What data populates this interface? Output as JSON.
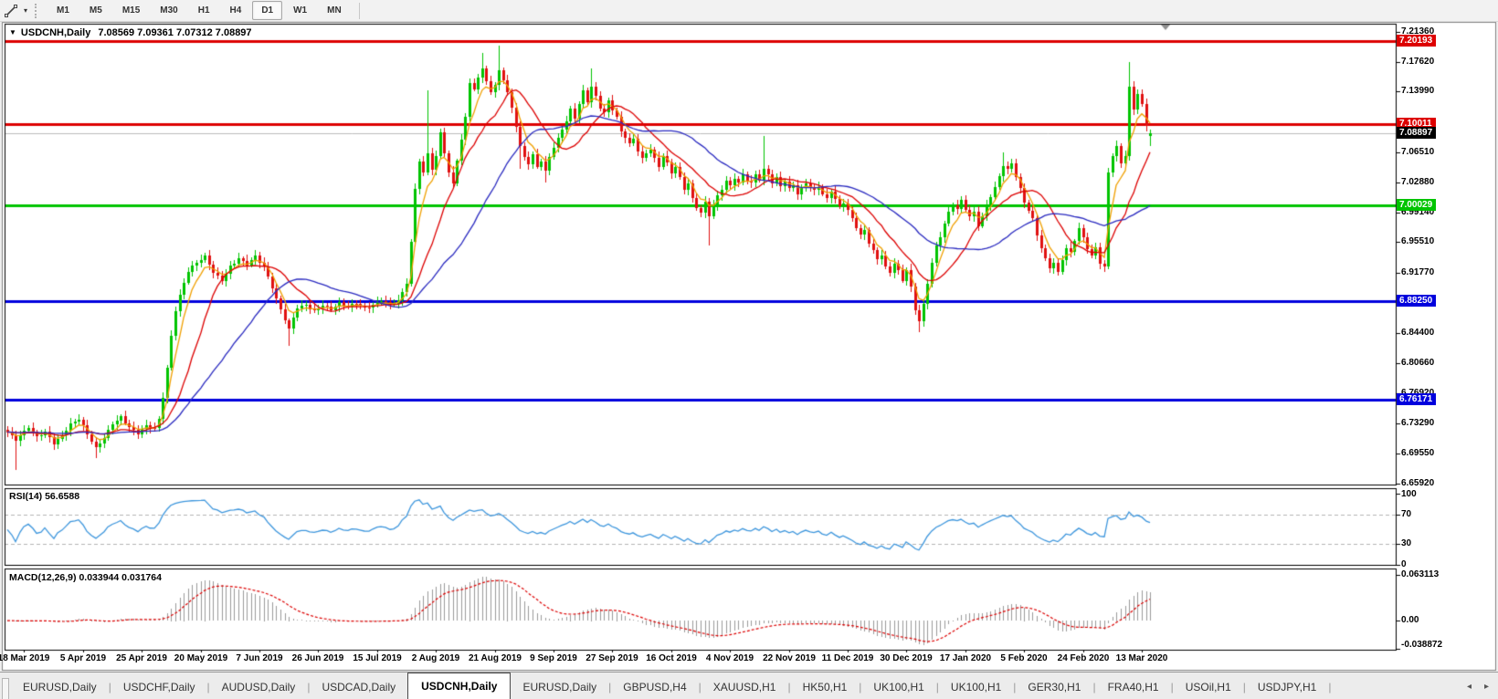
{
  "toolbar": {
    "timeframes": [
      "M1",
      "M5",
      "M15",
      "M30",
      "H1",
      "H4",
      "D1",
      "W1",
      "MN"
    ],
    "active_timeframe": "D1",
    "line_studies_icon": "crosshair-cursor",
    "dropdown_icon": "caret-down"
  },
  "chart": {
    "title": "USDCNH,Daily",
    "symbol": "USDCNH",
    "period": "Daily",
    "ohlc_text": "7.08569 7.09361 7.07312 7.08897",
    "open": "7.08569",
    "high": "7.09361",
    "low": "7.07312",
    "close": "7.08897"
  },
  "y_axis": {
    "ticks": [
      "7.21360",
      "7.17620",
      "7.13990",
      "7.06510",
      "7.02880",
      "6.99140",
      "6.95510",
      "6.91770",
      "6.84400",
      "6.80660",
      "6.76920",
      "6.73290",
      "6.69550",
      "6.65920"
    ]
  },
  "price_badges": [
    {
      "text": "7.20193",
      "bg": "#dd0000"
    },
    {
      "text": "7.10011",
      "bg": "#dd0000"
    },
    {
      "text": "7.08897",
      "bg": "#000000"
    },
    {
      "text": "7.00029",
      "bg": "#00c400"
    },
    {
      "text": "6.88250",
      "bg": "#0000dd"
    },
    {
      "text": "6.76171",
      "bg": "#0000dd"
    }
  ],
  "x_axis": {
    "labels": [
      "18 Mar 2019",
      "5 Apr 2019",
      "25 Apr 2019",
      "20 May 2019",
      "7 Jun 2019",
      "26 Jun 2019",
      "15 Jul 2019",
      "2 Aug 2019",
      "21 Aug 2019",
      "9 Sep 2019",
      "27 Sep 2019",
      "16 Oct 2019",
      "4 Nov 2019",
      "22 Nov 2019",
      "11 Dec 2019",
      "30 Dec 2019",
      "17 Jan 2020",
      "5 Feb 2020",
      "24 Feb 2020",
      "13 Mar 2020"
    ],
    "first_candle_index": 4,
    "candle_step": 14
  },
  "indicators": {
    "rsi": {
      "label": "RSI(14) 56.6588",
      "period": 14,
      "value": 56.6588,
      "levels": [
        70,
        30
      ],
      "scale": [
        0,
        100
      ],
      "axis_labels": [
        "100",
        "70",
        "30",
        "0"
      ],
      "line_color": "#3d96dd",
      "level_color": "#b4b4b4"
    },
    "macd": {
      "label": "MACD(12,26,9) 0.033944 0.031764",
      "params": [
        12,
        26,
        9
      ],
      "macd_value": 0.033944,
      "signal_value": 0.031764,
      "axis_labels": [
        "0.063113",
        "0.00",
        "-0.038872"
      ],
      "axis_max": 0.063113,
      "axis_min": -0.038872,
      "histogram_color": "#9a9a9a",
      "signal_color": "#dd0000"
    }
  },
  "tabs": {
    "items": [
      {
        "label": "EURUSD,Daily",
        "active": false
      },
      {
        "label": "USDCHF,Daily",
        "active": false
      },
      {
        "label": "AUDUSD,Daily",
        "active": false
      },
      {
        "label": "USDCAD,Daily",
        "active": false
      },
      {
        "label": "USDCNH,Daily",
        "active": true
      },
      {
        "label": "EURUSD,Daily",
        "active": false
      },
      {
        "label": "GBPUSD,H4",
        "active": false
      },
      {
        "label": "XAUUSD,H1",
        "active": false
      },
      {
        "label": "HK50,H1",
        "active": false
      },
      {
        "label": "UK100,H1",
        "active": false
      },
      {
        "label": "UK100,H1",
        "active": false
      },
      {
        "label": "GER30,H1",
        "active": false
      },
      {
        "label": "FRA40,H1",
        "active": false
      },
      {
        "label": "USOil,H1",
        "active": false
      },
      {
        "label": "USDJPY,H1",
        "active": false
      }
    ],
    "scroll_icons": [
      "arrow-left",
      "arrow-right"
    ]
  },
  "chart_data": {
    "type": "candlestick",
    "symbol": "USDCNH",
    "timeframe": "Daily",
    "candle_count": 273,
    "price_axis": {
      "min": 6.65761,
      "max": 7.22321
    },
    "up_color": "#00c400",
    "down_color": "#e01010",
    "h_lines": [
      {
        "price": 7.20193,
        "color": "#dd0000",
        "w": 3
      },
      {
        "price": 7.10011,
        "color": "#dd0000",
        "w": 3
      },
      {
        "price": 7.00029,
        "color": "#00c400",
        "w": 3
      },
      {
        "price": 6.8825,
        "color": "#0000dd",
        "w": 3
      },
      {
        "price": 6.76171,
        "color": "#0000dd",
        "w": 3
      },
      {
        "price": 7.08897,
        "color": "#bdbdbd",
        "w": 1
      }
    ],
    "ma_lines": [
      {
        "name": "fast",
        "type": "ema",
        "period": 5,
        "color": "#f0a000"
      },
      {
        "name": "medium",
        "type": "sma",
        "period": 13,
        "color": "#dd0000"
      },
      {
        "name": "slow",
        "type": "sma",
        "period": 30,
        "color": "#2a2ac0"
      }
    ],
    "close_anchors": [
      [
        0,
        6.722
      ],
      [
        2,
        6.712
      ],
      [
        3,
        6.718
      ],
      [
        5,
        6.728
      ],
      [
        7,
        6.716
      ],
      [
        9,
        6.722
      ],
      [
        11,
        6.708
      ],
      [
        13,
        6.718
      ],
      [
        15,
        6.732
      ],
      [
        17,
        6.738
      ],
      [
        19,
        6.72
      ],
      [
        21,
        6.702
      ],
      [
        23,
        6.715
      ],
      [
        25,
        6.732
      ],
      [
        27,
        6.74
      ],
      [
        29,
        6.728
      ],
      [
        31,
        6.72
      ],
      [
        33,
        6.73
      ],
      [
        35,
        6.726
      ],
      [
        36,
        6.738
      ],
      [
        37,
        6.765
      ],
      [
        38,
        6.8
      ],
      [
        39,
        6.84
      ],
      [
        40,
        6.872
      ],
      [
        41,
        6.89
      ],
      [
        42,
        6.905
      ],
      [
        43,
        6.92
      ],
      [
        45,
        6.93
      ],
      [
        47,
        6.938
      ],
      [
        49,
        6.918
      ],
      [
        51,
        6.908
      ],
      [
        53,
        6.925
      ],
      [
        55,
        6.935
      ],
      [
        57,
        6.928
      ],
      [
        59,
        6.938
      ],
      [
        61,
        6.925
      ],
      [
        63,
        6.9
      ],
      [
        64,
        6.885
      ],
      [
        65,
        6.872
      ],
      [
        66,
        6.86
      ],
      [
        67,
        6.848
      ],
      [
        68,
        6.862
      ],
      [
        69,
        6.875
      ],
      [
        71,
        6.878
      ],
      [
        73,
        6.87
      ],
      [
        75,
        6.878
      ],
      [
        77,
        6.872
      ],
      [
        79,
        6.88
      ],
      [
        81,
        6.876
      ],
      [
        83,
        6.88
      ],
      [
        85,
        6.874
      ],
      [
        87,
        6.878
      ],
      [
        89,
        6.884
      ],
      [
        91,
        6.878
      ],
      [
        93,
        6.883
      ],
      [
        95,
        6.905
      ],
      [
        96,
        6.955
      ],
      [
        97,
        7.02
      ],
      [
        98,
        7.055
      ],
      [
        99,
        7.04
      ],
      [
        100,
        7.065
      ],
      [
        101,
        7.045
      ],
      [
        102,
        7.06
      ],
      [
        103,
        7.09
      ],
      [
        104,
        7.065
      ],
      [
        105,
        7.04
      ],
      [
        106,
        7.028
      ],
      [
        107,
        7.055
      ],
      [
        108,
        7.08
      ],
      [
        109,
        7.11
      ],
      [
        110,
        7.15
      ],
      [
        111,
        7.142
      ],
      [
        112,
        7.158
      ],
      [
        113,
        7.168
      ],
      [
        114,
        7.152
      ],
      [
        115,
        7.14
      ],
      [
        116,
        7.148
      ],
      [
        117,
        7.165
      ],
      [
        118,
        7.155
      ],
      [
        119,
        7.138
      ],
      [
        120,
        7.12
      ],
      [
        121,
        7.098
      ],
      [
        122,
        7.072
      ],
      [
        123,
        7.06
      ],
      [
        124,
        7.052
      ],
      [
        125,
        7.062
      ],
      [
        126,
        7.048
      ],
      [
        127,
        7.055
      ],
      [
        128,
        7.042
      ],
      [
        129,
        7.06
      ],
      [
        130,
        7.072
      ],
      [
        131,
        7.082
      ],
      [
        132,
        7.094
      ],
      [
        133,
        7.104
      ],
      [
        134,
        7.118
      ],
      [
        135,
        7.108
      ],
      [
        136,
        7.125
      ],
      [
        137,
        7.14
      ],
      [
        138,
        7.128
      ],
      [
        139,
        7.146
      ],
      [
        140,
        7.134
      ],
      [
        141,
        7.12
      ],
      [
        142,
        7.114
      ],
      [
        143,
        7.128
      ],
      [
        144,
        7.118
      ],
      [
        145,
        7.108
      ],
      [
        146,
        7.09
      ],
      [
        147,
        7.084
      ],
      [
        148,
        7.076
      ],
      [
        149,
        7.082
      ],
      [
        150,
        7.068
      ],
      [
        151,
        7.058
      ],
      [
        152,
        7.064
      ],
      [
        153,
        7.07
      ],
      [
        154,
        7.058
      ],
      [
        155,
        7.048
      ],
      [
        156,
        7.062
      ],
      [
        157,
        7.052
      ],
      [
        158,
        7.04
      ],
      [
        159,
        7.048
      ],
      [
        160,
        7.034
      ],
      [
        161,
        7.02
      ],
      [
        162,
        7.028
      ],
      [
        163,
        7.008
      ],
      [
        164,
        6.998
      ],
      [
        165,
        6.992
      ],
      [
        166,
        7.004
      ],
      [
        167,
        6.988
      ],
      [
        168,
        7.0
      ],
      [
        169,
        7.012
      ],
      [
        170,
        7.02
      ],
      [
        171,
        7.03
      ],
      [
        172,
        7.024
      ],
      [
        173,
        7.034
      ],
      [
        174,
        7.028
      ],
      [
        175,
        7.038
      ],
      [
        176,
        7.032
      ],
      [
        177,
        7.028
      ],
      [
        178,
        7.038
      ],
      [
        179,
        7.032
      ],
      [
        180,
        7.044
      ],
      [
        181,
        7.038
      ],
      [
        182,
        7.028
      ],
      [
        183,
        7.034
      ],
      [
        184,
        7.024
      ],
      [
        185,
        7.03
      ],
      [
        186,
        7.02
      ],
      [
        187,
        7.026
      ],
      [
        188,
        7.014
      ],
      [
        189,
        7.02
      ],
      [
        190,
        7.028
      ],
      [
        191,
        7.022
      ],
      [
        192,
        7.018
      ],
      [
        193,
        7.024
      ],
      [
        194,
        7.014
      ],
      [
        195,
        7.008
      ],
      [
        196,
        7.018
      ],
      [
        197,
        7.008
      ],
      [
        198,
        6.998
      ],
      [
        199,
        7.004
      ],
      [
        200,
        6.994
      ],
      [
        201,
        6.984
      ],
      [
        202,
        6.974
      ],
      [
        203,
        6.964
      ],
      [
        204,
        6.97
      ],
      [
        205,
        6.954
      ],
      [
        206,
        6.944
      ],
      [
        207,
        6.934
      ],
      [
        208,
        6.94
      ],
      [
        209,
        6.924
      ],
      [
        210,
        6.918
      ],
      [
        211,
        6.93
      ],
      [
        212,
        6.92
      ],
      [
        213,
        6.908
      ],
      [
        214,
        6.922
      ],
      [
        215,
        6.9
      ],
      [
        216,
        6.872
      ],
      [
        217,
        6.858
      ],
      [
        218,
        6.878
      ],
      [
        219,
        6.905
      ],
      [
        220,
        6.93
      ],
      [
        221,
        6.95
      ],
      [
        222,
        6.962
      ],
      [
        223,
        6.978
      ],
      [
        224,
        6.992
      ],
      [
        225,
        7.002
      ],
      [
        226,
        6.996
      ],
      [
        227,
        7.006
      ],
      [
        228,
        6.996
      ],
      [
        229,
        6.986
      ],
      [
        230,
        6.992
      ],
      [
        231,
        6.976
      ],
      [
        232,
        6.986
      ],
      [
        233,
        7.0
      ],
      [
        234,
        7.012
      ],
      [
        235,
        7.022
      ],
      [
        236,
        7.036
      ],
      [
        237,
        7.05
      ],
      [
        238,
        7.044
      ],
      [
        239,
        7.052
      ],
      [
        240,
        7.036
      ],
      [
        241,
        7.02
      ],
      [
        242,
        7.004
      ],
      [
        243,
        6.994
      ],
      [
        244,
        6.984
      ],
      [
        245,
        6.964
      ],
      [
        246,
        6.948
      ],
      [
        247,
        6.934
      ],
      [
        248,
        6.924
      ],
      [
        249,
        6.93
      ],
      [
        250,
        6.918
      ],
      [
        251,
        6.934
      ],
      [
        252,
        6.948
      ],
      [
        253,
        6.942
      ],
      [
        254,
        6.958
      ],
      [
        255,
        6.972
      ],
      [
        256,
        6.96
      ],
      [
        257,
        6.948
      ],
      [
        258,
        6.938
      ],
      [
        259,
        6.948
      ],
      [
        260,
        6.93
      ],
      [
        261,
        6.924
      ],
      [
        262,
        7.04
      ],
      [
        263,
        7.062
      ],
      [
        264,
        7.072
      ],
      [
        265,
        7.052
      ],
      [
        266,
        7.062
      ],
      [
        267,
        7.145
      ],
      [
        268,
        7.118
      ],
      [
        269,
        7.138
      ],
      [
        270,
        7.124
      ],
      [
        271,
        7.098
      ],
      [
        272,
        7.089
      ]
    ],
    "overrides": {
      "2": {
        "l": 6.676
      },
      "21": {
        "l": 6.69
      },
      "67": {
        "l": 6.828
      },
      "100": {
        "h": 7.142
      },
      "113": {
        "h": 7.187
      },
      "117": {
        "h": 7.196
      },
      "122": {
        "l": 7.045
      },
      "128": {
        "l": 7.028
      },
      "139": {
        "h": 7.168
      },
      "167": {
        "l": 6.951
      },
      "180": {
        "h": 7.085
      },
      "217": {
        "l": 6.845
      },
      "237": {
        "h": 7.065
      },
      "267": {
        "h": 7.176
      },
      "272": {
        "o": 7.08569,
        "h": 7.09361,
        "l": 7.07312,
        "c": 7.08897
      }
    }
  }
}
